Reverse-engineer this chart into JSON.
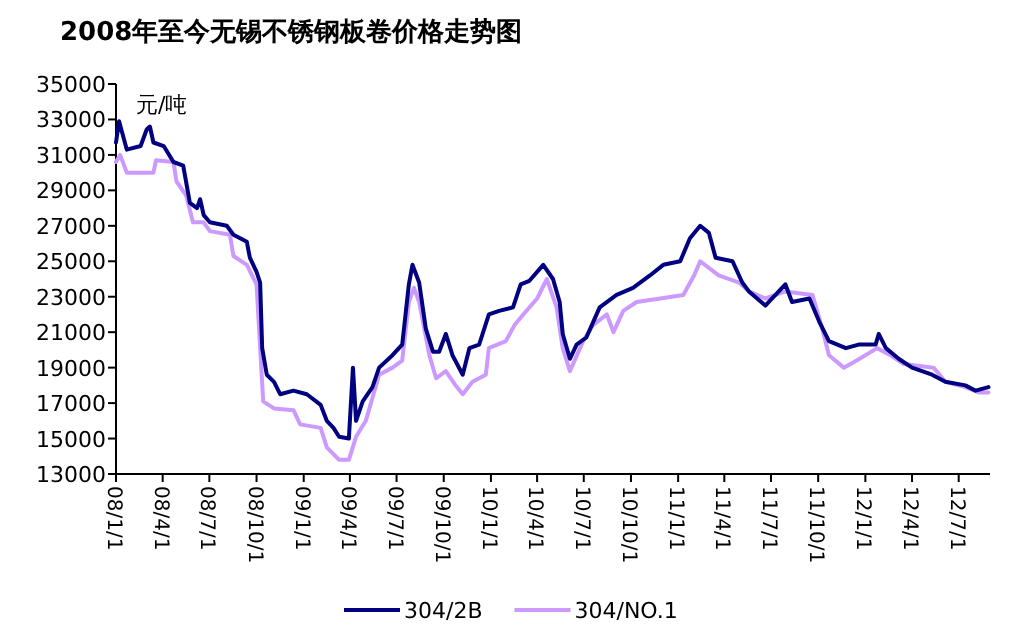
{
  "chart_data": {
    "type": "line",
    "title": "2008年至今无锡不锈钢板卷价格走势图",
    "ylabel": "元/吨",
    "legend": "bottom",
    "line_style": "solid",
    "marker": "none",
    "xlim": [
      "2008-01-01",
      "2012-08-31"
    ],
    "ylim": [
      13000,
      35000
    ],
    "yticks": [
      13000,
      15000,
      17000,
      19000,
      21000,
      23000,
      25000,
      27000,
      29000,
      31000,
      33000,
      35000
    ],
    "xticks": [
      {
        "value": "2008-01-01",
        "label": "08/1/1"
      },
      {
        "value": "2008-04-01",
        "label": "08/4/1"
      },
      {
        "value": "2008-07-01",
        "label": "08/7/1"
      },
      {
        "value": "2008-10-01",
        "label": "08/10/1"
      },
      {
        "value": "2009-01-01",
        "label": "09/1/1"
      },
      {
        "value": "2009-04-01",
        "label": "09/4/1"
      },
      {
        "value": "2009-07-01",
        "label": "09/7/1"
      },
      {
        "value": "2009-10-01",
        "label": "09/10/1"
      },
      {
        "value": "2010-01-01",
        "label": "10/1/1"
      },
      {
        "value": "2010-04-01",
        "label": "10/4/1"
      },
      {
        "value": "2010-07-01",
        "label": "10/7/1"
      },
      {
        "value": "2010-10-01",
        "label": "10/10/1"
      },
      {
        "value": "2011-01-01",
        "label": "11/1/1"
      },
      {
        "value": "2011-04-01",
        "label": "11/4/1"
      },
      {
        "value": "2011-07-01",
        "label": "11/7/1"
      },
      {
        "value": "2011-10-01",
        "label": "11/10/1"
      },
      {
        "value": "2012-01-01",
        "label": "12/1/1"
      },
      {
        "value": "2012-04-01",
        "label": "12/4/1"
      },
      {
        "value": "2012-07-01",
        "label": "12/7/1"
      }
    ],
    "series": [
      {
        "name": "304/2B",
        "color": "#000080",
        "x": [
          "2008-01-01",
          "2008-01-07",
          "2008-01-22",
          "2008-02-18",
          "2008-03-01",
          "2008-03-07",
          "2008-03-14",
          "2008-04-03",
          "2008-04-22",
          "2008-05-11",
          "2008-05-24",
          "2008-06-07",
          "2008-06-13",
          "2008-06-20",
          "2008-07-02",
          "2008-08-04",
          "2008-08-17",
          "2008-09-12",
          "2008-09-18",
          "2008-10-01",
          "2008-10-08",
          "2008-10-12",
          "2008-10-21",
          "2008-11-04",
          "2008-11-16",
          "2008-12-12",
          "2009-01-07",
          "2009-02-03",
          "2009-02-15",
          "2009-02-28",
          "2009-03-11",
          "2009-03-30",
          "2009-04-07",
          "2009-04-13",
          "2009-04-26",
          "2009-05-15",
          "2009-05-28",
          "2009-06-23",
          "2009-07-12",
          "2009-07-25",
          "2009-08-01",
          "2009-08-14",
          "2009-08-27",
          "2009-09-10",
          "2009-09-22",
          "2009-10-05",
          "2009-10-18",
          "2009-11-07",
          "2009-11-20",
          "2009-12-09",
          "2009-12-28",
          "2010-01-17",
          "2010-02-13",
          "2010-02-28",
          "2010-03-17",
          "2010-04-13",
          "2010-05-02",
          "2010-05-15",
          "2010-05-21",
          "2010-06-04",
          "2010-06-17",
          "2010-07-06",
          "2010-08-01",
          "2010-09-03",
          "2010-10-05",
          "2010-11-07",
          "2010-12-03",
          "2011-01-05",
          "2011-01-24",
          "2011-02-13",
          "2011-03-02",
          "2011-03-15",
          "2011-04-17",
          "2011-05-06",
          "2011-05-19",
          "2011-06-20",
          "2011-07-29",
          "2011-08-11",
          "2011-09-14",
          "2011-10-03",
          "2011-10-22",
          "2011-11-24",
          "2011-12-19",
          "2012-01-21",
          "2012-01-27",
          "2012-02-10",
          "2012-03-06",
          "2012-04-01",
          "2012-05-10",
          "2012-06-05",
          "2012-07-14",
          "2012-08-03",
          "2012-08-28"
        ],
        "values": [
          31700,
          32900,
          31300,
          31500,
          32450,
          32600,
          31700,
          31500,
          30600,
          30400,
          28300,
          28000,
          28500,
          27600,
          27200,
          27000,
          26500,
          26100,
          25200,
          24400,
          23800,
          20100,
          18600,
          18200,
          17500,
          17700,
          17500,
          16900,
          16000,
          15600,
          15100,
          15000,
          19000,
          16000,
          17100,
          17900,
          19000,
          19700,
          20300,
          23700,
          24800,
          23800,
          21200,
          19900,
          19900,
          20900,
          19700,
          18600,
          20100,
          20300,
          22000,
          22200,
          22400,
          23700,
          23900,
          24800,
          24000,
          22700,
          20900,
          19500,
          20300,
          20700,
          22400,
          23100,
          23500,
          24200,
          24800,
          25000,
          26300,
          27000,
          26600,
          25200,
          25000,
          23800,
          23300,
          22500,
          23700,
          22700,
          22900,
          21600,
          20500,
          20100,
          20300,
          20300,
          20900,
          20100,
          19500,
          19000,
          18600,
          18200,
          18000,
          17700,
          17900
        ]
      },
      {
        "name": "304/NO.1",
        "color": "#cc99ff",
        "x": [
          "2008-01-01",
          "2008-01-09",
          "2008-01-22",
          "2008-03-14",
          "2008-03-19",
          "2008-04-22",
          "2008-04-28",
          "2008-05-17",
          "2008-05-30",
          "2008-06-20",
          "2008-07-02",
          "2008-08-10",
          "2008-08-17",
          "2008-09-12",
          "2008-10-01",
          "2008-10-14",
          "2008-11-04",
          "2008-12-12",
          "2008-12-25",
          "2009-02-03",
          "2009-02-15",
          "2009-03-11",
          "2009-03-30",
          "2009-04-13",
          "2009-05-02",
          "2009-05-28",
          "2009-06-23",
          "2009-07-12",
          "2009-07-25",
          "2009-08-04",
          "2009-08-14",
          "2009-09-03",
          "2009-09-16",
          "2009-10-05",
          "2009-10-24",
          "2009-11-07",
          "2009-11-26",
          "2009-12-22",
          "2009-12-28",
          "2010-01-30",
          "2010-02-16",
          "2010-03-05",
          "2010-04-01",
          "2010-04-20",
          "2010-05-09",
          "2010-05-21",
          "2010-06-04",
          "2010-06-30",
          "2010-07-19",
          "2010-08-15",
          "2010-08-28",
          "2010-09-16",
          "2010-10-12",
          "2010-11-27",
          "2011-01-11",
          "2011-02-01",
          "2011-02-13",
          "2011-03-21",
          "2011-04-30",
          "2011-05-19",
          "2011-06-20",
          "2011-07-29",
          "2011-09-20",
          "2011-10-09",
          "2011-10-22",
          "2011-11-20",
          "2011-12-15",
          "2012-01-24",
          "2012-02-19",
          "2012-03-16",
          "2012-05-13",
          "2012-06-05",
          "2012-07-14",
          "2012-08-09",
          "2012-08-28"
        ],
        "values": [
          30600,
          31000,
          30000,
          30000,
          30700,
          30600,
          29500,
          28700,
          27200,
          27200,
          26700,
          26500,
          25300,
          24800,
          23700,
          17100,
          16700,
          16600,
          15800,
          15600,
          14500,
          13800,
          13800,
          15100,
          16000,
          18600,
          19000,
          19400,
          22700,
          23500,
          22700,
          19700,
          18400,
          18800,
          18000,
          17500,
          18200,
          18600,
          20100,
          20500,
          21400,
          22000,
          22900,
          24000,
          22400,
          20100,
          18800,
          20500,
          21400,
          22000,
          21000,
          22200,
          22700,
          22900,
          23100,
          24200,
          25000,
          24200,
          23800,
          23300,
          22900,
          23300,
          23100,
          21200,
          19700,
          19000,
          19400,
          20100,
          19700,
          19200,
          19000,
          18200,
          17900,
          17600,
          17600
        ]
      }
    ]
  }
}
